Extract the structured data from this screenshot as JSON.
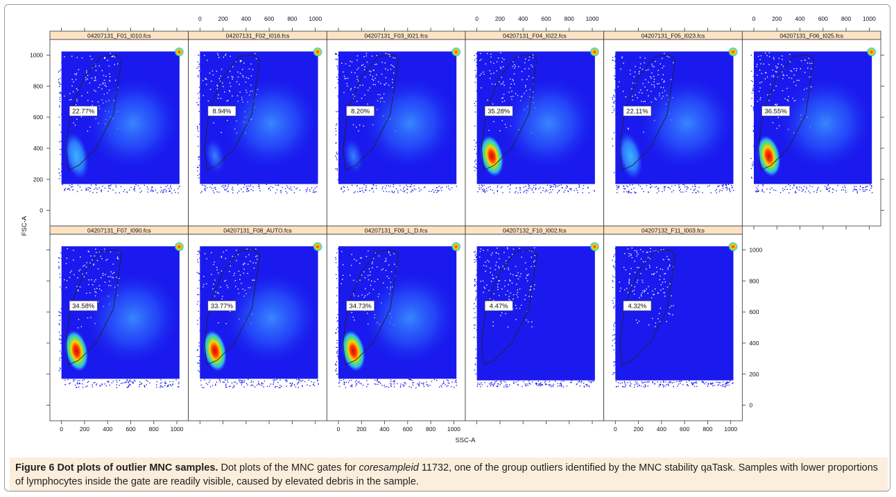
{
  "figure": {
    "caption": {
      "label": "Figure 6",
      "title": "Dot plots of outlier MNC samples.",
      "text_before": " Dot plots of the MNC gates for ",
      "emphasis": "coresampleid",
      "text_after": " 11732, one of the group outliers identified by the MNC stability qaTask. Samples with lower proportions of lymphocytes inside the gate are readily visible, caused by elevated debris in the sample."
    }
  },
  "chart_data": {
    "type": "scatter",
    "xlabel": "SSC-A",
    "ylabel": "FSC-A",
    "xlim": [
      -100,
      1100
    ],
    "ylim": [
      -100,
      1100
    ],
    "x_ticks": [
      0,
      200,
      400,
      600,
      800,
      1000
    ],
    "y_ticks": [
      0,
      200,
      400,
      600,
      800,
      1000
    ],
    "layout": {
      "rows": 2,
      "cols": 6
    },
    "colors": {
      "strip": "#fce3c4",
      "background_density": "#1a1aee",
      "high_density": "#ee1100",
      "gate": "#222222"
    },
    "gate_polygon": [
      [
        60,
        260
      ],
      [
        150,
        290
      ],
      [
        300,
        400
      ],
      [
        450,
        620
      ],
      [
        520,
        970
      ],
      [
        470,
        1000
      ],
      [
        340,
        990
      ],
      [
        200,
        860
      ],
      [
        80,
        640
      ],
      [
        40,
        400
      ]
    ],
    "panels": [
      {
        "name": "04207131_F01_I010.fcs",
        "gate_percent": "22.77%"
      },
      {
        "name": "04207131_F02_I016.fcs",
        "gate_percent": "8.94%"
      },
      {
        "name": "04207131_F03_I021.fcs",
        "gate_percent": "8.20%"
      },
      {
        "name": "04207131_F04_I022.fcs",
        "gate_percent": "35.28%"
      },
      {
        "name": "04207131_F05_I023.fcs",
        "gate_percent": "22.11%"
      },
      {
        "name": "04207131_F06_I025.fcs",
        "gate_percent": "36.55%"
      },
      {
        "name": "04207131_F07_I090.fcs",
        "gate_percent": "34.58%"
      },
      {
        "name": "04207131_F08_AUTO.fcs",
        "gate_percent": "33.77%"
      },
      {
        "name": "04207131_F09_L_D.fcs",
        "gate_percent": "34.73%"
      },
      {
        "name": "04207132_F10_I002.fcs",
        "gate_percent": "4.47%"
      },
      {
        "name": "04207132_F11_I003.fcs",
        "gate_percent": "4.32%"
      }
    ]
  }
}
